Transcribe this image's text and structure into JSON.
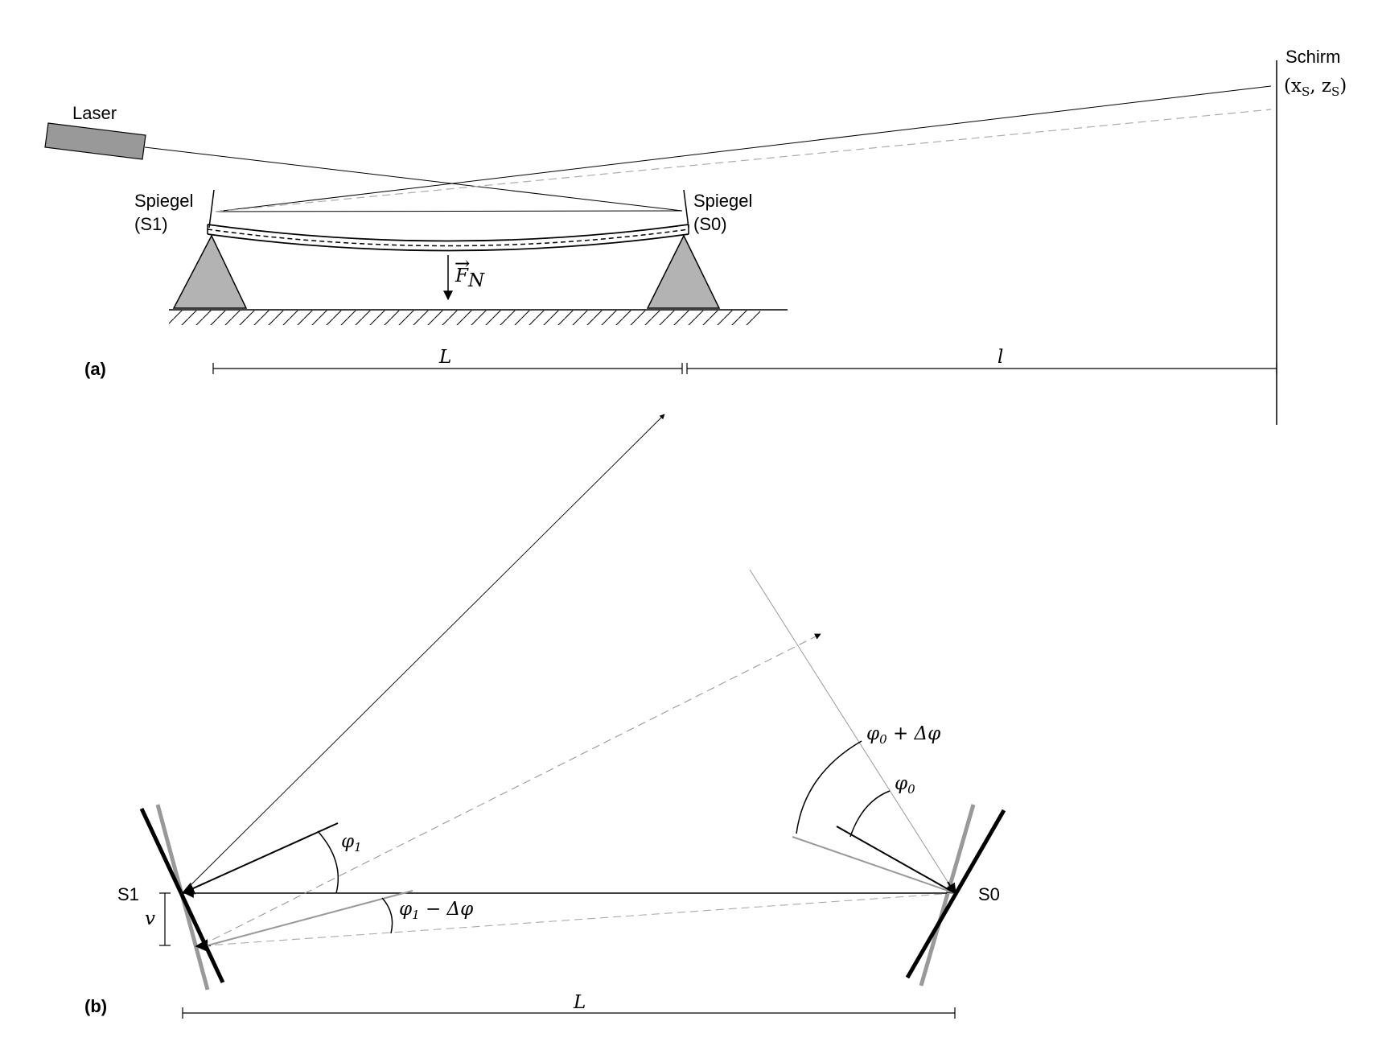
{
  "panel_a": {
    "tag": "(a)",
    "laser_label": "Laser",
    "mirror_s1_label": [
      "Spiegel",
      "(S1)"
    ],
    "mirror_s0_label": [
      "Spiegel",
      "(S0)"
    ],
    "screen_label": "Schirm",
    "screen_point_label": "(x",
    "screen_point_sub1": "S",
    "screen_point_mid": ", z",
    "screen_point_sub2": "S",
    "screen_point_end": ")",
    "force_label": "F",
    "force_sub": "N",
    "dim_L_label": "L",
    "dim_l_label": "l"
  },
  "panel_b": {
    "tag": "(b)",
    "s1_label": "S1",
    "s0_label": "S0",
    "v_label": "v",
    "dim_L_label": "L",
    "angle_phi1": "φ",
    "angle_phi1_sub": "1",
    "angle_phi1_minus": " − Δφ",
    "angle_phi0": "φ",
    "angle_phi0_sub": "0",
    "angle_phi0_plus": " + Δφ"
  },
  "colors": {
    "ink": "#000000",
    "support_fill": "#b3b3b3",
    "laser_fill": "#999999",
    "gray_line": "#999999",
    "dashed_gray": "#aaaaaa"
  }
}
